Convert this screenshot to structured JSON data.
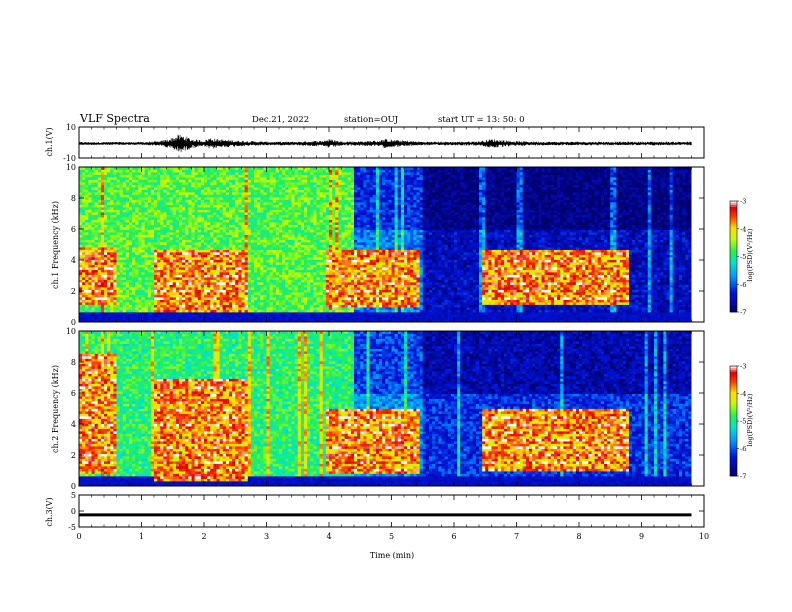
{
  "header": {
    "title": "VLF Spectra",
    "date": "Dec.21, 2022",
    "station": "station=OUJ",
    "start": "start UT = 13: 50: 0"
  },
  "chart_data": [
    {
      "type": "line",
      "name": "ch1-waveform",
      "ylabel": "ch.1(V)",
      "ylim": [
        -10,
        10
      ],
      "y_ticks": [
        "10",
        "-10"
      ],
      "xlim": [
        0,
        10
      ],
      "x": [
        0,
        0.5,
        1,
        1.3,
        1.5,
        1.6,
        1.7,
        1.8,
        2.0,
        2.1,
        2.2,
        2.5,
        3.0,
        3.5,
        3.9,
        4.0,
        4.2,
        4.5,
        4.8,
        4.9,
        5.0,
        5.2,
        5.5,
        6.0,
        6.4,
        6.6,
        7.0,
        7.5,
        8.0,
        8.5,
        9.0,
        9.5,
        9.8
      ],
      "envelope": [
        1,
        1,
        1,
        1.5,
        4,
        6,
        5,
        3,
        2,
        4,
        3,
        2,
        1.2,
        1.2,
        2,
        3,
        1.5,
        1.5,
        2,
        3,
        2.5,
        2,
        1.2,
        1.2,
        1.5,
        3,
        1.5,
        1.2,
        1.2,
        1.2,
        1.2,
        1.2,
        1.2
      ]
    },
    {
      "type": "heatmap",
      "name": "ch1-spectrogram",
      "ylabel": "ch.1 Frequency (kHz)",
      "ylim": [
        0,
        10
      ],
      "y_ticks": [
        "0",
        "2",
        "4",
        "6",
        "8",
        "10"
      ],
      "xlim": [
        0,
        10
      ],
      "colorbar": {
        "label": "log(PSD)(V²/Hz)",
        "range": [
          -7,
          -3
        ],
        "ticks": [
          "-3",
          "-4",
          "-5",
          "-6",
          "-7"
        ]
      },
      "background_by_time": [
        {
          "x0": 0,
          "x1": 4.4,
          "level": -4.7
        },
        {
          "x0": 4.4,
          "x1": 5.5,
          "level": -5.8
        },
        {
          "x0": 5.5,
          "x1": 9.8,
          "level": -6.5
        }
      ],
      "bursts": [
        {
          "x0": 0,
          "x1": 0.6,
          "f0": 1.2,
          "f1": 4.8
        },
        {
          "x0": 1.2,
          "x1": 2.7,
          "f0": 0.6,
          "f1": 4.6
        },
        {
          "x0": 3.95,
          "x1": 5.45,
          "f0": 1.0,
          "f1": 4.6
        },
        {
          "x0": 6.45,
          "x1": 8.8,
          "f0": 1.2,
          "f1": 4.6
        }
      ]
    },
    {
      "type": "heatmap",
      "name": "ch2-spectrogram",
      "ylabel": "ch.2 Frequency (kHz)",
      "ylim": [
        0,
        10
      ],
      "y_ticks": [
        "0",
        "2",
        "4",
        "6",
        "8",
        "10"
      ],
      "xlim": [
        0,
        10
      ],
      "colorbar": {
        "label": "log(PSD)(V²/Hz)",
        "range": [
          -7,
          -3
        ],
        "ticks": [
          "-3",
          "-4",
          "-5",
          "-6",
          "-7"
        ]
      },
      "background_by_time": [
        {
          "x0": 0,
          "x1": 4.4,
          "level": -4.9
        },
        {
          "x0": 4.4,
          "x1": 5.5,
          "level": -5.7
        },
        {
          "x0": 5.5,
          "x1": 9.8,
          "level": -6.2
        }
      ],
      "bursts": [
        {
          "x0": 0,
          "x1": 0.6,
          "f0": 0.8,
          "f1": 8.5
        },
        {
          "x0": 1.2,
          "x1": 2.7,
          "f0": 0.3,
          "f1": 7.0
        },
        {
          "x0": 3.95,
          "x1": 5.45,
          "f0": 0.8,
          "f1": 5.0
        },
        {
          "x0": 6.45,
          "x1": 8.8,
          "f0": 1.0,
          "f1": 5.0
        }
      ]
    },
    {
      "type": "line",
      "name": "ch3-waveform",
      "ylabel": "ch.3(V)",
      "ylim": [
        -5,
        5
      ],
      "y_ticks": [
        "5",
        "0",
        "-5"
      ],
      "xlim": [
        0,
        10
      ],
      "x": [
        0,
        9.8
      ],
      "y": [
        -1.2,
        -1.2
      ]
    }
  ],
  "x_axis": {
    "label": "Time (min)",
    "ticks": [
      "0",
      "1",
      "2",
      "3",
      "4",
      "5",
      "6",
      "7",
      "8",
      "9",
      "10"
    ]
  },
  "colors": {
    "low": "#00008b",
    "mid": "#00ff7f",
    "high": "#ff0000",
    "top": "#ffffff"
  }
}
